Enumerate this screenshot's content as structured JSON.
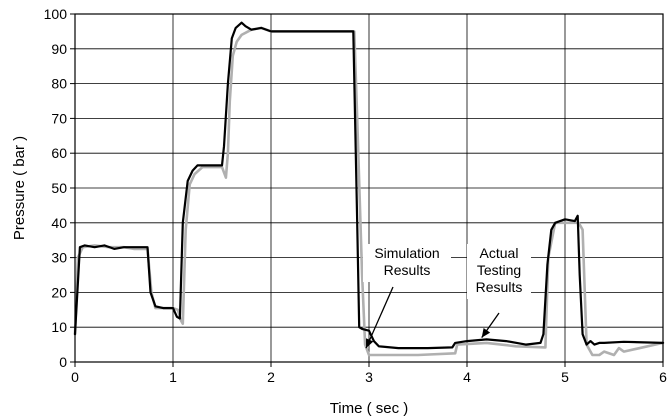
{
  "chart_data": {
    "type": "line",
    "title": "",
    "xlabel": "Time ( sec )",
    "ylabel": "Pressure ( bar )",
    "xlim": [
      0,
      6
    ],
    "ylim": [
      0,
      100
    ],
    "xticks": [
      0,
      1,
      2,
      3,
      4,
      5,
      6
    ],
    "yticks": [
      0,
      10,
      20,
      30,
      40,
      50,
      60,
      70,
      80,
      90,
      100
    ],
    "grid": true,
    "legend": "none",
    "annotations": [
      {
        "lines": [
          "Simulation",
          "Results"
        ],
        "points_to_series": "Simulation Results",
        "arrow_to": [
          2.97,
          4
        ]
      },
      {
        "lines": [
          "Actual",
          "Testing",
          "Results"
        ],
        "points_to_series": "Actual Testing Results",
        "arrow_to": [
          4.15,
          7
        ]
      }
    ],
    "series": [
      {
        "name": "Simulation Results",
        "color": "#b0b0b0",
        "x": [
          0,
          0.03,
          0.08,
          0.2,
          0.35,
          0.5,
          0.6,
          0.74,
          0.78,
          0.82,
          0.9,
          1.0,
          1.05,
          1.08,
          1.1,
          1.13,
          1.17,
          1.22,
          1.3,
          1.5,
          1.54,
          1.56,
          1.58,
          1.61,
          1.65,
          1.7,
          1.8,
          1.9,
          2.0,
          2.2,
          2.5,
          2.8,
          2.85,
          2.88,
          2.93,
          2.96,
          3.0,
          3.5,
          3.88,
          3.9,
          4.2,
          4.5,
          4.8,
          4.83,
          4.9,
          5.1,
          5.14,
          5.18,
          5.22,
          5.28,
          5.35,
          5.4,
          5.5,
          5.55,
          5.6,
          6.0
        ],
        "y": [
          8,
          30,
          33,
          33.5,
          33,
          33,
          32.5,
          32.5,
          20,
          15.5,
          15.5,
          15.5,
          15,
          12,
          11,
          38,
          51,
          54,
          56,
          56,
          53,
          60,
          75,
          88,
          92,
          94,
          95.5,
          96,
          95,
          95,
          95,
          95,
          95,
          70,
          25,
          5,
          2,
          2,
          2.5,
          5,
          5.5,
          4.5,
          4.2,
          30,
          40,
          40,
          40,
          38,
          5,
          2,
          2,
          3,
          2,
          4,
          3,
          5.5
        ]
      },
      {
        "name": "Actual Testing Results",
        "color": "#000000",
        "x": [
          0,
          0.05,
          0.1,
          0.2,
          0.3,
          0.4,
          0.5,
          0.6,
          0.74,
          0.77,
          0.82,
          0.9,
          1.0,
          1.04,
          1.07,
          1.1,
          1.15,
          1.2,
          1.25,
          1.3,
          1.4,
          1.5,
          1.52,
          1.56,
          1.6,
          1.64,
          1.7,
          1.74,
          1.8,
          1.9,
          2.0,
          2.2,
          2.5,
          2.8,
          2.84,
          2.88,
          2.9,
          2.93,
          3.0,
          3.05,
          3.1,
          3.3,
          3.6,
          3.85,
          3.88,
          4.0,
          4.2,
          4.4,
          4.6,
          4.75,
          4.78,
          4.82,
          4.86,
          4.9,
          5.0,
          5.1,
          5.13,
          5.15,
          5.18,
          5.22,
          5.26,
          5.3,
          5.35,
          5.4,
          5.6,
          6.0
        ],
        "y": [
          8,
          33,
          33.5,
          33,
          33.5,
          32.5,
          33,
          33,
          33,
          20,
          16,
          15.5,
          15.5,
          13,
          12.5,
          40,
          52,
          55,
          56.5,
          56.5,
          56.5,
          56.5,
          62,
          80,
          93,
          96,
          97.5,
          96.5,
          95.5,
          96,
          95,
          95,
          95,
          95,
          95,
          40,
          10,
          9.5,
          9,
          6,
          4.5,
          4,
          4,
          4.2,
          5.5,
          6,
          6.5,
          6,
          5,
          5.5,
          8,
          28,
          38,
          40,
          41,
          40.5,
          42,
          25,
          8,
          5,
          6,
          5,
          5.5,
          5.5,
          5.8,
          5.5
        ]
      }
    ]
  }
}
